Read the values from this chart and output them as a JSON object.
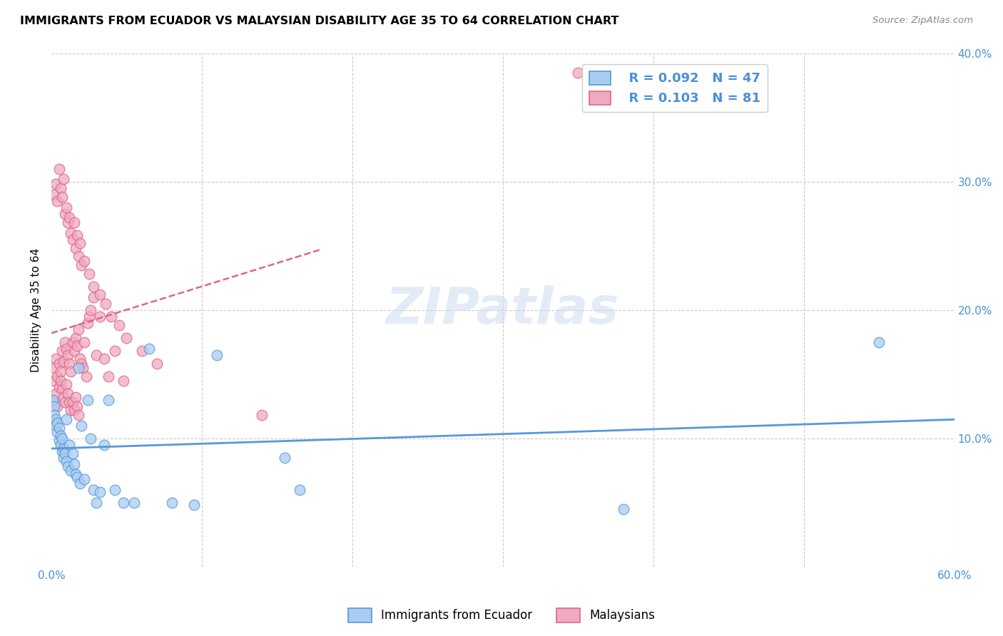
{
  "title": "IMMIGRANTS FROM ECUADOR VS MALAYSIAN DISABILITY AGE 35 TO 64 CORRELATION CHART",
  "source": "Source: ZipAtlas.com",
  "ylabel": "Disability Age 35 to 64",
  "xlim": [
    0.0,
    0.6
  ],
  "ylim": [
    0.0,
    0.4
  ],
  "yticks": [
    0.0,
    0.1,
    0.2,
    0.3,
    0.4
  ],
  "yticklabels": [
    "",
    "10.0%",
    "20.0%",
    "30.0%",
    "40.0%"
  ],
  "xticks": [
    0.0,
    0.1,
    0.2,
    0.3,
    0.4,
    0.5,
    0.6
  ],
  "xticklabels": [
    "0.0%",
    "",
    "",
    "",
    "",
    "",
    "60.0%"
  ],
  "legend_label1": "Immigrants from Ecuador",
  "legend_label2": "Malaysians",
  "r1": 0.092,
  "n1": 47,
  "r2": 0.103,
  "n2": 81,
  "color1": "#aaccf0",
  "color2": "#f0aac0",
  "line_color1": "#5599dd",
  "line_color2": "#dd6688",
  "watermark": "ZIPatlas",
  "ecuador_x": [
    0.001,
    0.002,
    0.002,
    0.003,
    0.003,
    0.004,
    0.004,
    0.005,
    0.005,
    0.006,
    0.006,
    0.007,
    0.007,
    0.008,
    0.008,
    0.009,
    0.01,
    0.01,
    0.011,
    0.012,
    0.013,
    0.014,
    0.015,
    0.016,
    0.017,
    0.018,
    0.019,
    0.02,
    0.022,
    0.024,
    0.026,
    0.028,
    0.03,
    0.032,
    0.035,
    0.038,
    0.042,
    0.048,
    0.055,
    0.065,
    0.08,
    0.095,
    0.11,
    0.155,
    0.165,
    0.55,
    0.38
  ],
  "ecuador_y": [
    0.13,
    0.125,
    0.118,
    0.115,
    0.11,
    0.112,
    0.105,
    0.108,
    0.098,
    0.102,
    0.095,
    0.1,
    0.09,
    0.085,
    0.092,
    0.088,
    0.082,
    0.115,
    0.078,
    0.095,
    0.075,
    0.088,
    0.08,
    0.072,
    0.07,
    0.155,
    0.065,
    0.11,
    0.068,
    0.13,
    0.1,
    0.06,
    0.05,
    0.058,
    0.095,
    0.13,
    0.06,
    0.05,
    0.05,
    0.17,
    0.05,
    0.048,
    0.165,
    0.085,
    0.06,
    0.175,
    0.045
  ],
  "malaysia_x": [
    0.001,
    0.002,
    0.002,
    0.003,
    0.003,
    0.004,
    0.004,
    0.005,
    0.005,
    0.006,
    0.006,
    0.007,
    0.007,
    0.008,
    0.008,
    0.009,
    0.009,
    0.01,
    0.01,
    0.011,
    0.011,
    0.012,
    0.012,
    0.013,
    0.013,
    0.014,
    0.014,
    0.015,
    0.015,
    0.016,
    0.016,
    0.017,
    0.017,
    0.018,
    0.018,
    0.019,
    0.02,
    0.021,
    0.022,
    0.023,
    0.024,
    0.025,
    0.026,
    0.028,
    0.03,
    0.032,
    0.035,
    0.038,
    0.042,
    0.048,
    0.002,
    0.003,
    0.004,
    0.005,
    0.006,
    0.007,
    0.008,
    0.009,
    0.01,
    0.011,
    0.012,
    0.013,
    0.014,
    0.015,
    0.016,
    0.017,
    0.018,
    0.019,
    0.02,
    0.022,
    0.025,
    0.028,
    0.032,
    0.036,
    0.04,
    0.045,
    0.05,
    0.06,
    0.07,
    0.14,
    0.35
  ],
  "malaysia_y": [
    0.13,
    0.155,
    0.145,
    0.162,
    0.135,
    0.148,
    0.125,
    0.158,
    0.14,
    0.152,
    0.145,
    0.168,
    0.138,
    0.16,
    0.132,
    0.175,
    0.128,
    0.17,
    0.142,
    0.165,
    0.135,
    0.158,
    0.128,
    0.152,
    0.122,
    0.175,
    0.128,
    0.168,
    0.122,
    0.178,
    0.132,
    0.172,
    0.125,
    0.185,
    0.118,
    0.162,
    0.158,
    0.155,
    0.175,
    0.148,
    0.19,
    0.195,
    0.2,
    0.21,
    0.165,
    0.195,
    0.162,
    0.148,
    0.168,
    0.145,
    0.29,
    0.298,
    0.285,
    0.31,
    0.295,
    0.288,
    0.302,
    0.275,
    0.28,
    0.268,
    0.272,
    0.26,
    0.255,
    0.268,
    0.248,
    0.258,
    0.242,
    0.252,
    0.235,
    0.238,
    0.228,
    0.218,
    0.212,
    0.205,
    0.195,
    0.188,
    0.178,
    0.168,
    0.158,
    0.118,
    0.385
  ],
  "malaysia_line_x_end": 0.18,
  "ecuador_line_intercept": 0.108,
  "ecuador_line_slope": 0.06,
  "malaysia_line_intercept": 0.168,
  "malaysia_line_slope": 0.18
}
